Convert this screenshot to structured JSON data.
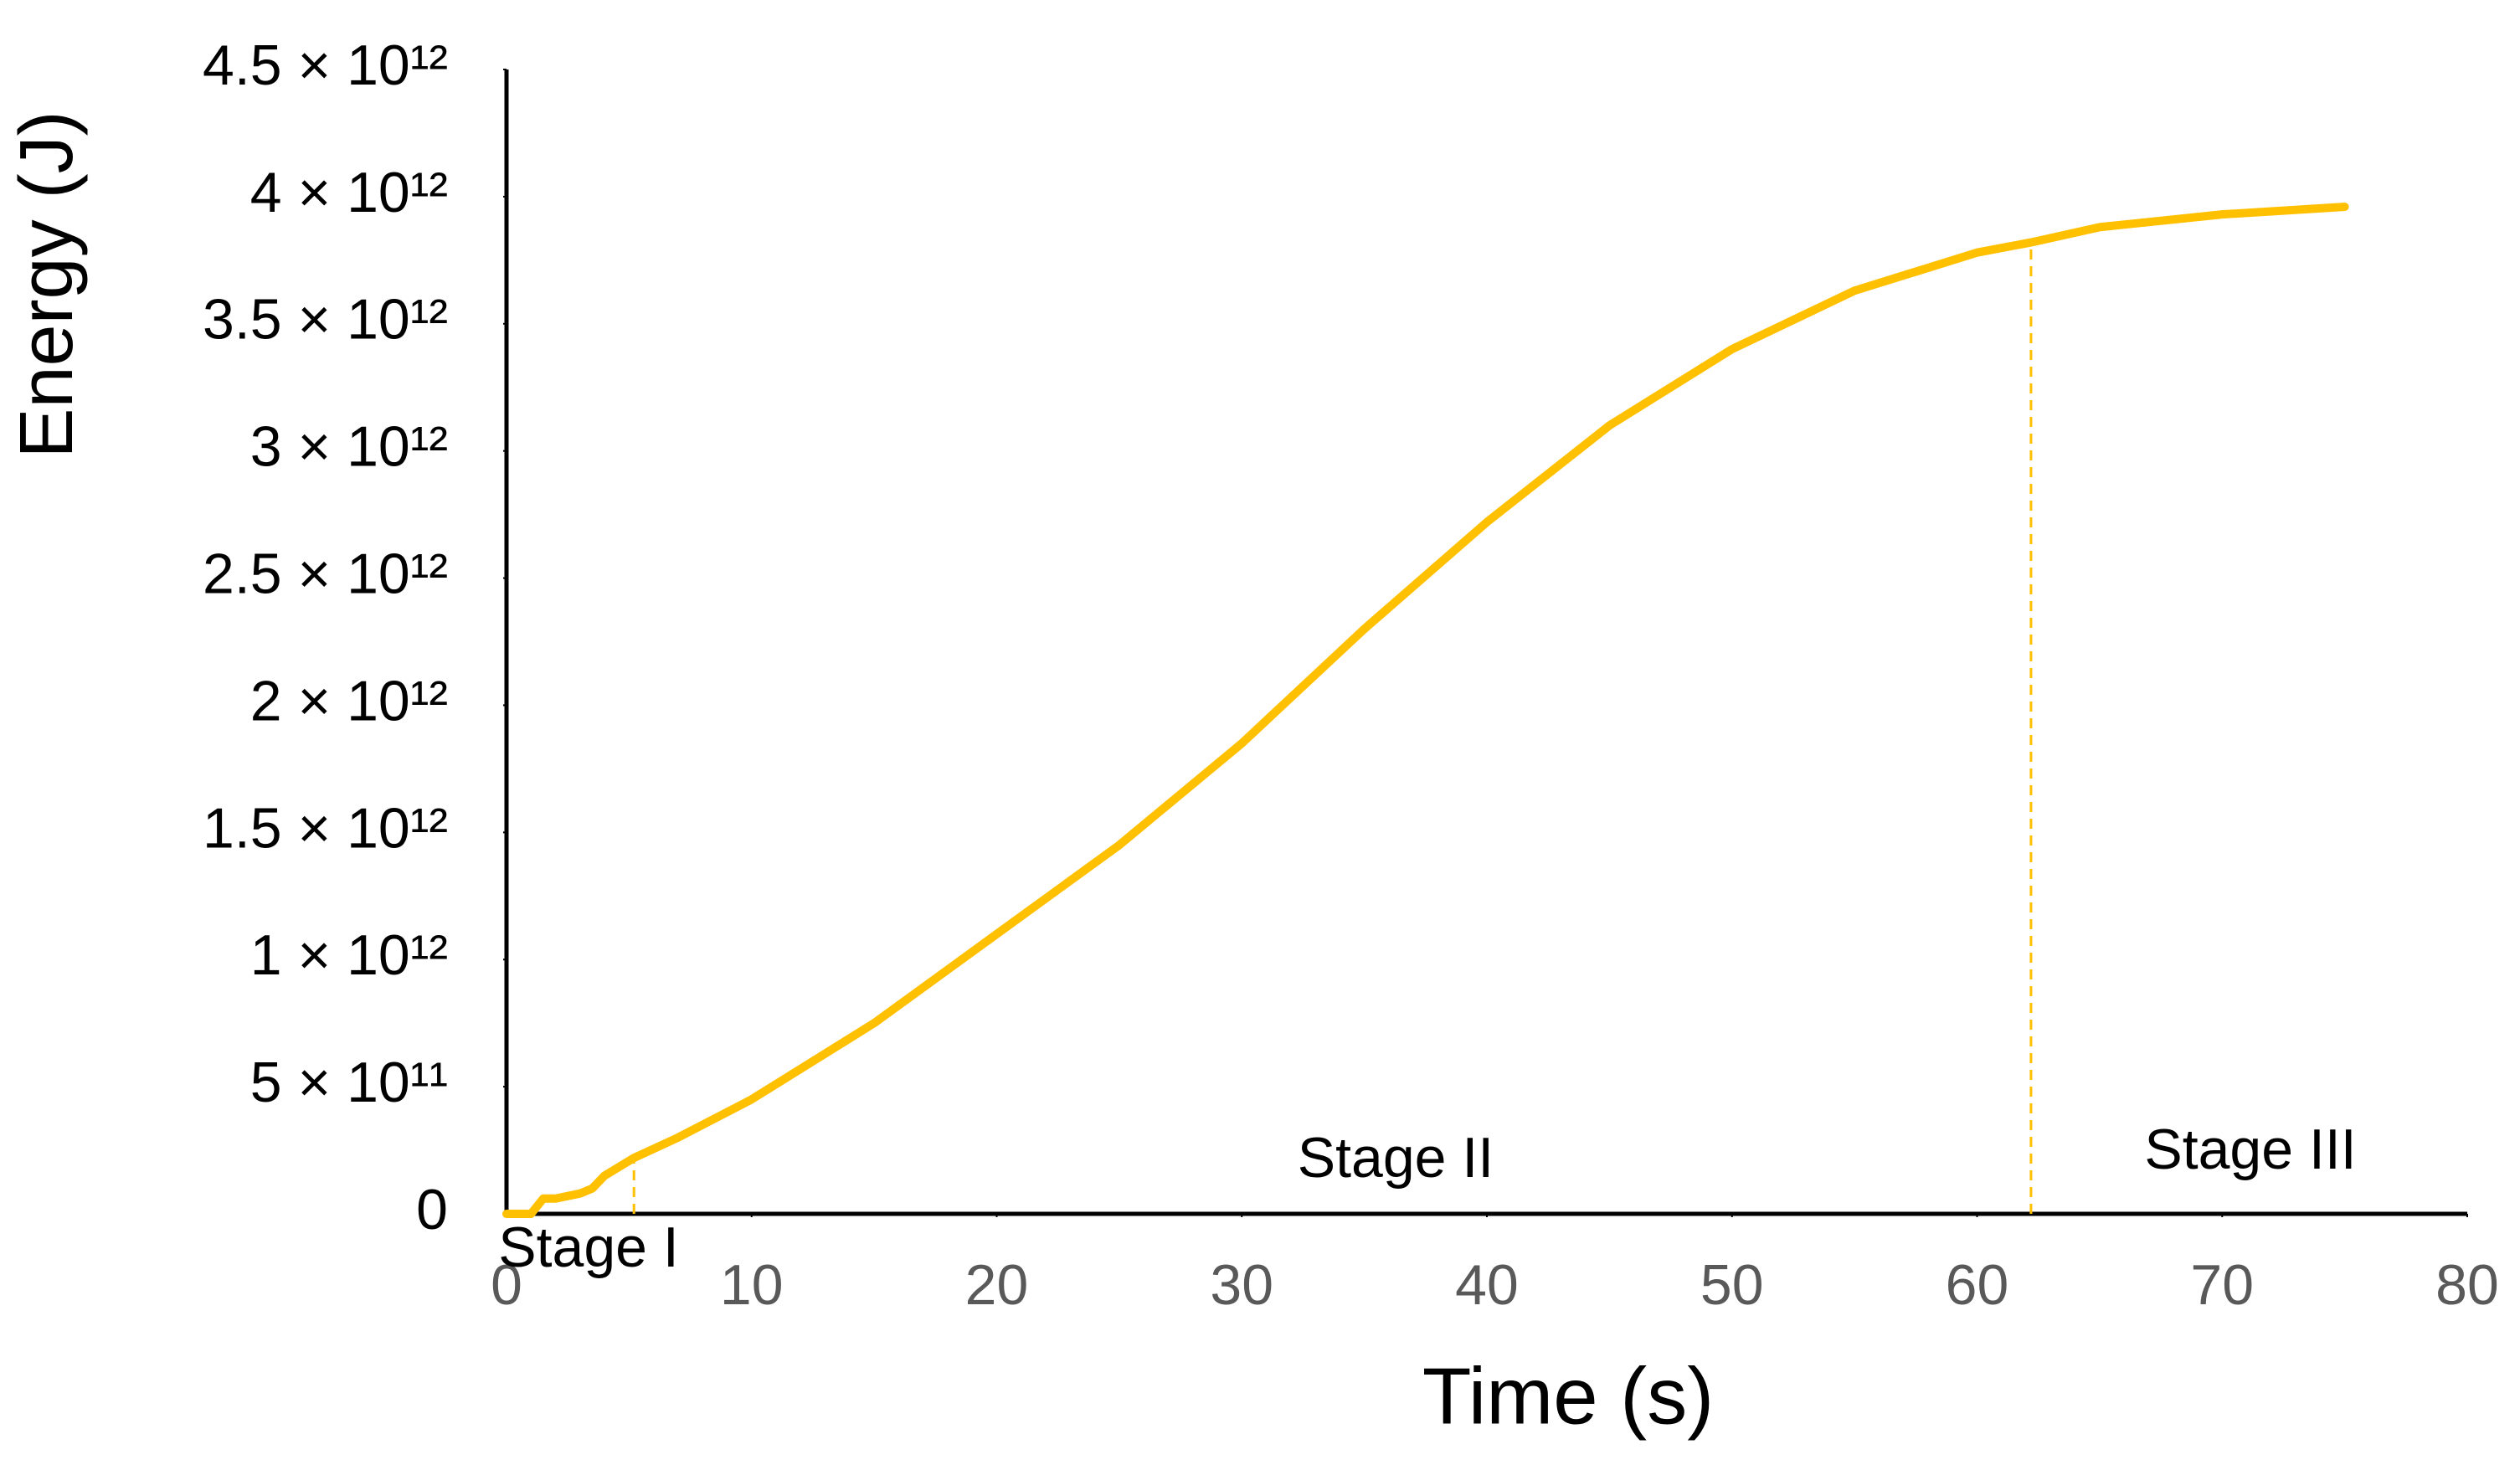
{
  "chart_data": {
    "type": "line",
    "x_label": "Time (s)",
    "y_label": "Energy (J)",
    "xlim": [
      0,
      80
    ],
    "xticks": [
      0,
      10,
      20,
      30,
      40,
      50,
      60,
      70,
      80
    ],
    "ylim": [
      0,
      4500000000000
    ],
    "yticks": [
      0,
      {
        "value": 500000000000,
        "label": "5 × 10¹¹"
      },
      {
        "value": 1000000000000,
        "label": "1 × 10¹²"
      },
      {
        "value": 1500000000000,
        "label": "1.5 × 10¹²"
      },
      {
        "value": 2000000000000,
        "label": "2 × 10¹²"
      },
      {
        "value": 2500000000000,
        "label": "2.5 × 10¹²"
      },
      {
        "value": 3000000000000,
        "label": "3 × 10¹²"
      },
      {
        "value": 3500000000000,
        "label": "3.5 × 10¹²"
      },
      {
        "value": 4000000000000,
        "label": "4 × 10¹²"
      },
      {
        "value": 4500000000000,
        "label": "4.5 × 10¹²"
      }
    ],
    "grid": false,
    "x": [
      0,
      1,
      1.5,
      2,
      3,
      3.5,
      4,
      5.2,
      7,
      10,
      15,
      20,
      25,
      30,
      35,
      40,
      45,
      50,
      55,
      60,
      62.2,
      65,
      70,
      75
    ],
    "series": [
      {
        "color": "#ffc000",
        "values": [
          0,
          0,
          60000000000,
          60000000000,
          80000000000,
          100000000000,
          150000000000,
          220000000000,
          300000000000,
          450000000000,
          750000000000,
          1100000000000,
          1450000000000,
          1850000000000,
          2300000000000,
          2720000000000,
          3100000000000,
          3400000000000,
          3630000000000,
          3780000000000,
          3820000000000,
          3880000000000,
          3930000000000,
          3960000000000
        ]
      }
    ],
    "stage_boundaries": [
      5.2,
      62.2
    ],
    "annotations": [
      "Stage I",
      "Stage II",
      "Stage III"
    ]
  }
}
